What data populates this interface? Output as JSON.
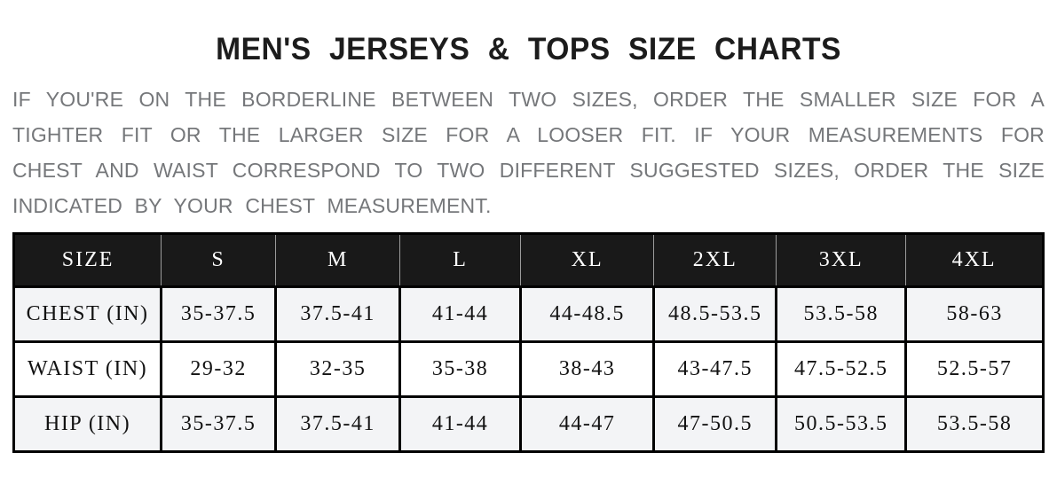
{
  "title": "MEN'S JERSEYS & TOPS SIZE CHARTS",
  "description": "IF YOU'RE ON THE BORDERLINE BETWEEN TWO SIZES, ORDER THE SMALLER SIZE FOR A TIGHTER FIT OR THE LARGER SIZE FOR A LOOSER FIT. IF YOUR MEASUREMENTS FOR CHEST AND WAIST CORRESPOND TO TWO DIFFERENT SUGGESTED SIZES, ORDER THE SIZE INDICATED BY YOUR CHEST MEASUREMENT.",
  "size_chart": {
    "columns": [
      "SIZE",
      "S",
      "M",
      "L",
      "XL",
      "2XL",
      "3XL",
      "4XL"
    ],
    "rows": [
      {
        "label": "CHEST (IN)",
        "values": [
          "35-37.5",
          "37.5-41",
          "41-44",
          "44-48.5",
          "48.5-53.5",
          "53.5-58",
          "58-63"
        ]
      },
      {
        "label": "WAIST (IN)",
        "values": [
          "29-32",
          "32-35",
          "35-38",
          "38-43",
          "43-47.5",
          "47.5-52.5",
          "52.5-57"
        ]
      },
      {
        "label": "HIP (IN)",
        "values": [
          "35-37.5",
          "37.5-41",
          "41-44",
          "44-47",
          "47-50.5",
          "50.5-53.5",
          "53.5-58"
        ]
      }
    ]
  },
  "colors": {
    "title_text": "#1c1c1c",
    "paragraph_text": "#75777a",
    "header_bg": "#191919",
    "header_text": "#ffffff",
    "header_divider": "#9b9b9b",
    "row_alt_bg": "#f3f4f6",
    "row_bg": "#ffffff",
    "table_border": "#000000",
    "page_bg": "#ffffff"
  }
}
